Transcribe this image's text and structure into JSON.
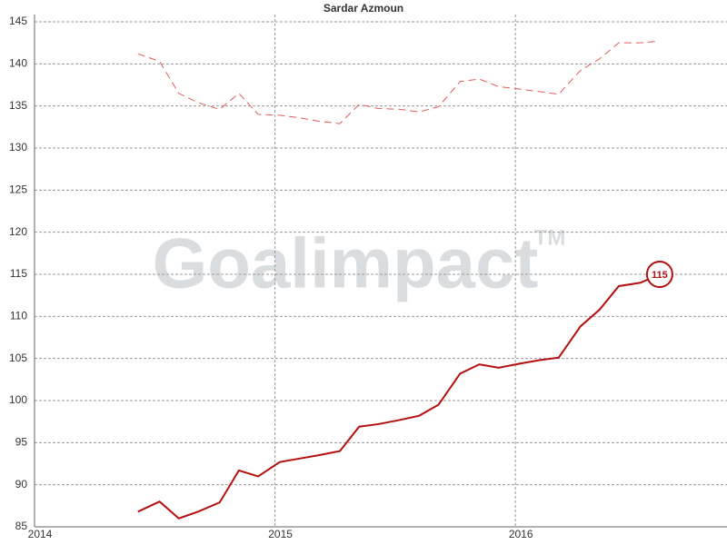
{
  "chart_data": {
    "type": "line",
    "title": "Sardar Azmoun",
    "watermark": "Goalimpact",
    "watermark_mark": "TM",
    "x": [
      2014.43,
      2014.52,
      2014.6,
      2014.68,
      2014.77,
      2014.85,
      2014.93,
      2015.02,
      2015.1,
      2015.18,
      2015.27,
      2015.35,
      2015.43,
      2015.52,
      2015.6,
      2015.68,
      2015.77,
      2015.85,
      2015.93,
      2016.02,
      2016.1,
      2016.18,
      2016.27,
      2016.35,
      2016.43,
      2016.52,
      2016.6
    ],
    "series": [
      {
        "color": "#b30f0f",
        "dash": false,
        "values": [
          86.8,
          88.0,
          86.0,
          86.8,
          87.9,
          91.7,
          91.0,
          92.7,
          93.1,
          93.5,
          94.0,
          96.9,
          97.2,
          97.7,
          98.2,
          99.5,
          103.2,
          104.3,
          103.9,
          104.4,
          104.8,
          105.1,
          108.8,
          110.8,
          113.6,
          114.0,
          115
        ]
      },
      {
        "color": "#e35a5a",
        "dash": true,
        "values": [
          141.2,
          140.3,
          136.5,
          135.4,
          134.6,
          136.5,
          134.0,
          133.9,
          133.6,
          133.2,
          132.9,
          135.2,
          134.7,
          134.6,
          134.3,
          134.9,
          137.9,
          138.2,
          137.3,
          137.0,
          136.7,
          136.4,
          139.2,
          140.6,
          142.5,
          142.5,
          142.7
        ]
      }
    ],
    "current_value_marker": {
      "series": 0,
      "index": 26
    },
    "xlim": [
      2014,
      2016.88
    ],
    "xticks": [
      2014,
      2015,
      2016
    ],
    "ylim": [
      85,
      145
    ],
    "yticks": [
      85,
      90,
      95,
      100,
      105,
      110,
      115,
      120,
      125,
      130,
      135,
      140,
      145
    ],
    "grid": true
  }
}
